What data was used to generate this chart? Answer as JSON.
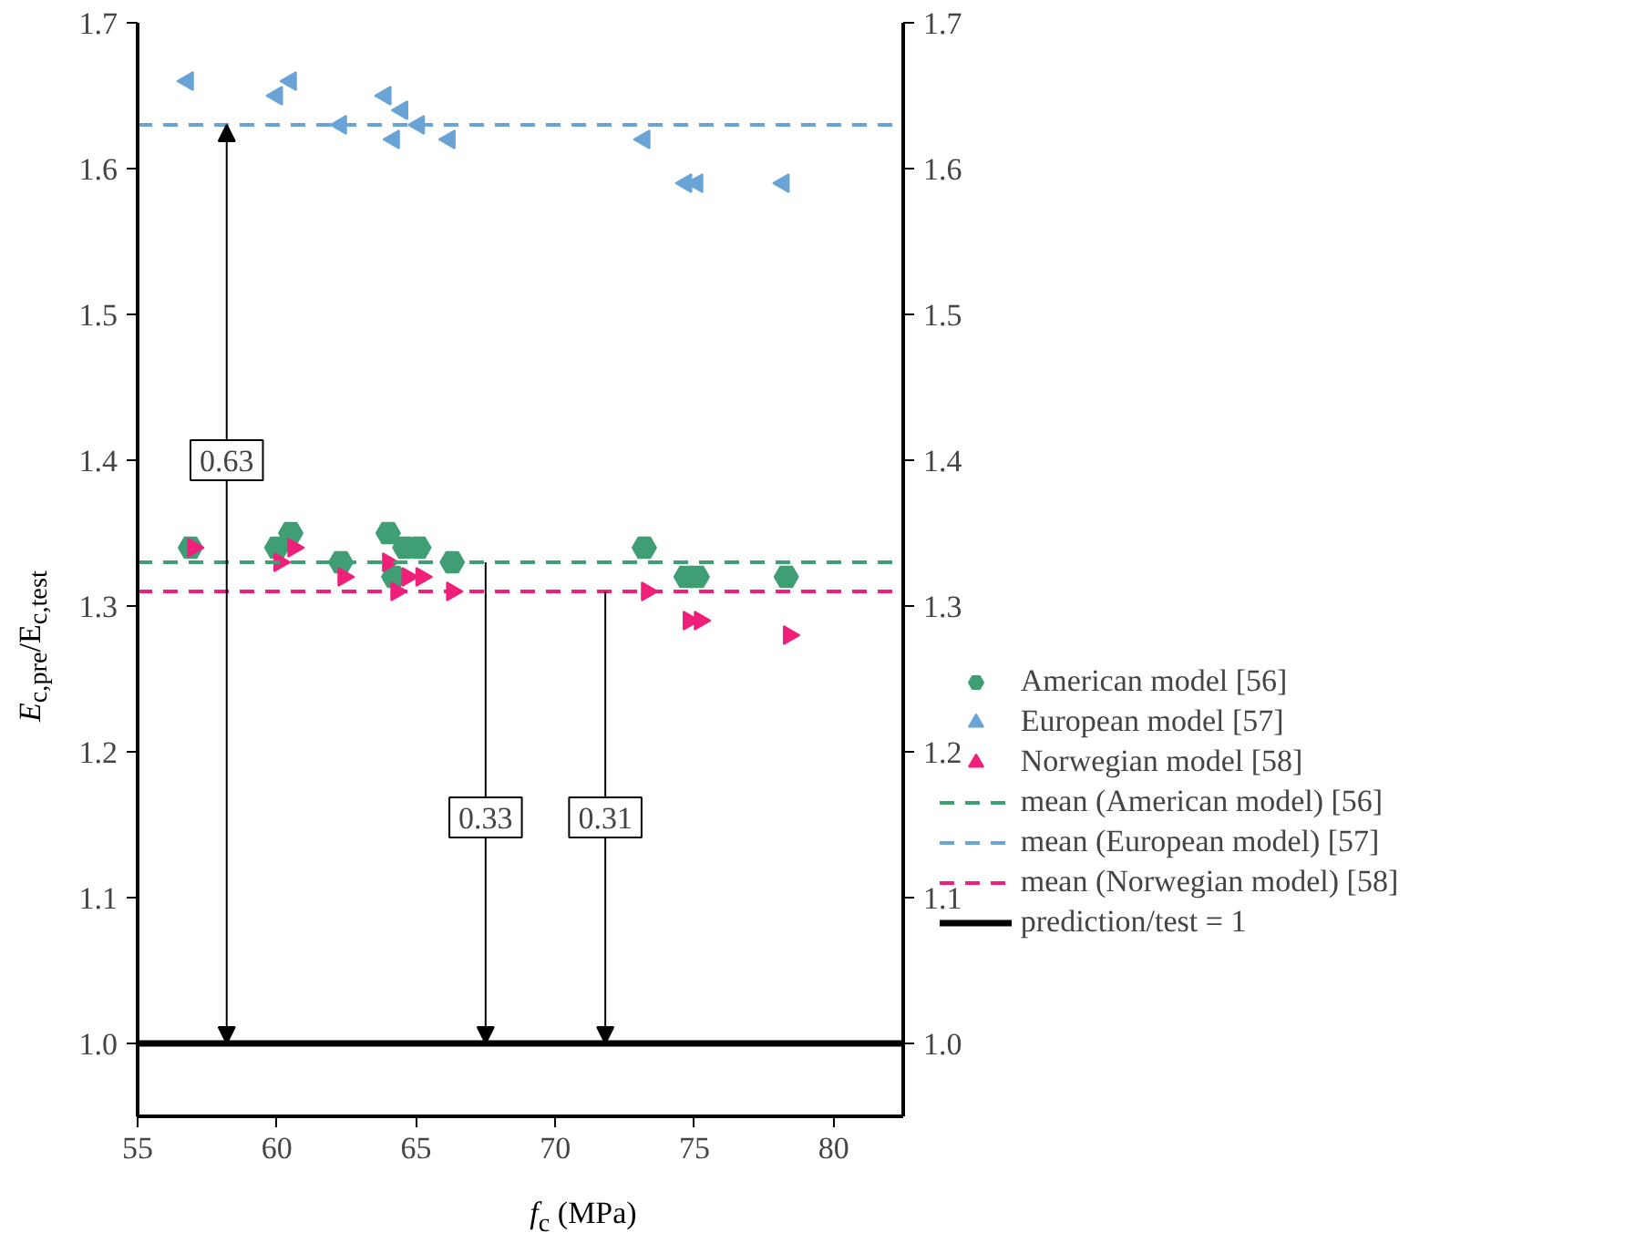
{
  "chart_data": {
    "type": "scatter",
    "xlabel": "f$_{c}$ (MPa)",
    "ylabel": "E$_{c,pre}$/E$_{c,test}$",
    "xlim": [
      55,
      82.5
    ],
    "xticks": [
      55,
      60,
      65,
      70,
      75,
      80
    ],
    "ylim": [
      0.95,
      1.7
    ],
    "yticks": [
      {
        "value": 1,
        "label": "1.0"
      },
      1.1,
      1.2,
      1.3,
      1.4,
      1.5,
      1.6,
      1.7
    ],
    "y2lim": [
      0.95,
      1.7
    ],
    "y2ticks": [
      {
        "value": 1,
        "label": "1.0"
      },
      1.1,
      1.2,
      1.3,
      1.4,
      1.5,
      1.6,
      1.7
    ],
    "legend": "right",
    "grid": false,
    "series": [
      {
        "name": "American model [56]",
        "color": "#3f9e74",
        "x": [
          56.9,
          60.0,
          60.5,
          62.3,
          64.0,
          64.2,
          64.6,
          65.1,
          66.3,
          73.2,
          74.7,
          75.1,
          78.3
        ],
        "values": [
          1.34,
          1.34,
          1.35,
          1.33,
          1.35,
          1.32,
          1.34,
          1.34,
          1.33,
          1.34,
          1.32,
          1.32,
          1.32
        ]
      },
      {
        "name": "European model [57]",
        "color": "#6aa4d6",
        "x": [
          56.8,
          60.0,
          60.5,
          62.3,
          63.9,
          64.5,
          64.2,
          65.1,
          66.2,
          73.2,
          74.7,
          75.1,
          78.2
        ],
        "values": [
          1.66,
          1.65,
          1.66,
          1.63,
          1.65,
          1.64,
          1.62,
          1.63,
          1.62,
          1.62,
          1.59,
          1.59,
          1.59
        ]
      },
      {
        "name": "Norwegian model [58]",
        "color": "#f0207a",
        "x": [
          57.0,
          60.1,
          60.6,
          62.4,
          64.0,
          64.3,
          64.7,
          65.2,
          66.3,
          73.3,
          74.8,
          75.2,
          78.4
        ],
        "values": [
          1.34,
          1.33,
          1.34,
          1.32,
          1.33,
          1.31,
          1.32,
          1.32,
          1.31,
          1.31,
          1.29,
          1.29,
          1.28
        ]
      }
    ],
    "ref_lines": [
      {
        "axis": "y",
        "value": 1.33,
        "label": "mean (American model) [56]",
        "color": "#3f9e74",
        "line_style": "dashed"
      },
      {
        "axis": "y",
        "value": 1.63,
        "label": "mean (European model) [57]",
        "color": "#6aa4d6",
        "line_style": "dashed"
      },
      {
        "axis": "y",
        "value": 1.31,
        "label": "mean (Norwegian model) [58]",
        "color": "#f0207a",
        "line_style": "dashed"
      },
      {
        "axis": "y",
        "value": 1.0,
        "label": "prediction/test = 1",
        "color": "#000000",
        "line_style": "solid"
      }
    ],
    "annotations": [
      {
        "text": "0.63",
        "x": 58.2,
        "y": 1.4
      },
      {
        "text": "0.33",
        "x": 67.5,
        "y": 1.155
      },
      {
        "text": "0.31",
        "x": 71.8,
        "y": 1.155
      }
    ]
  }
}
